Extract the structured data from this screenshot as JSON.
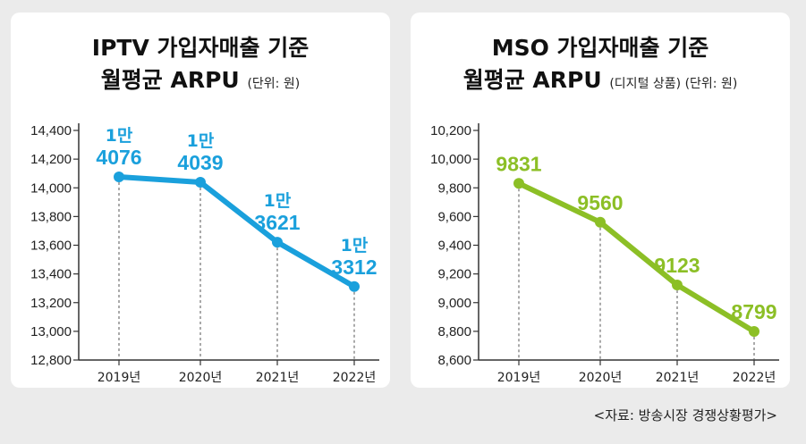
{
  "chart_data": [
    {
      "type": "line",
      "title_line1": "IPTV 가입자매출 기준",
      "title_line2": "월평균 ARPU",
      "subtitle": "(단위: 원)",
      "categories": [
        "2019년",
        "2020년",
        "2021년",
        "2022년"
      ],
      "values": [
        14076,
        14039,
        13621,
        13312
      ],
      "point_labels": [
        {
          "prefix": "1만",
          "main": "4076"
        },
        {
          "prefix": "1만",
          "main": "4039"
        },
        {
          "prefix": "1만",
          "main": "3621"
        },
        {
          "prefix": "1만",
          "main": "3312"
        }
      ],
      "ylim": [
        12800,
        14400
      ],
      "yticks": [
        14400,
        14200,
        14000,
        13800,
        13600,
        13400,
        13200,
        13000,
        12800
      ],
      "ytick_labels": [
        "14,400",
        "14,200",
        "14,000",
        "13,800",
        "13,600",
        "13,400",
        "13,200",
        "13,000",
        "12,800"
      ],
      "color": "#1aa0dc"
    },
    {
      "type": "line",
      "title_line1": "MSO 가입자매출 기준",
      "title_line2": "월평균 ARPU",
      "subtitle": "(디지털 상품) (단위: 원)",
      "categories": [
        "2019년",
        "2020년",
        "2021년",
        "2022년"
      ],
      "values": [
        9831,
        9560,
        9123,
        8799
      ],
      "point_labels": [
        {
          "prefix": "",
          "main": "9831"
        },
        {
          "prefix": "",
          "main": "9560"
        },
        {
          "prefix": "",
          "main": "9123"
        },
        {
          "prefix": "",
          "main": "8799"
        }
      ],
      "ylim": [
        8600,
        10200
      ],
      "yticks": [
        10200,
        10000,
        9800,
        9600,
        9400,
        9200,
        9000,
        8800,
        8600
      ],
      "ytick_labels": [
        "10,200",
        "10,000",
        "9,800",
        "9,600",
        "9,400",
        "9,200",
        "9,000",
        "8,800",
        "8,600"
      ],
      "color": "#8cbf26"
    }
  ],
  "source": "<자료: 방송시장 경쟁상황평가>"
}
